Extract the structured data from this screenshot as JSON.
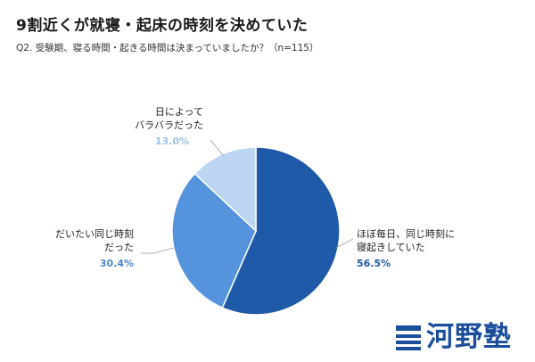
{
  "title": "9割近くが就寝・起床の時刻を決めていた",
  "subtitle": "Q2. 受験期、寝る時間・起きる時間は決まっていましたか？（n=115）",
  "logo": {
    "text": "河野塾"
  },
  "colors": {
    "dark": "#1e5aa7",
    "mid": "#5593dc",
    "light": "#bcd5f0",
    "pct_dark": "#1e5aa7",
    "pct_mid": "#4a86cf",
    "pct_light": "#9ec0e6",
    "leader": "#999999"
  },
  "chart_data": {
    "type": "pie",
    "title": "9割近くが就寝・起床の時刻を決めていた",
    "slices": [
      {
        "label_lines": [
          "ほぼ毎日、同じ時刻に",
          "寝起きしていた"
        ],
        "value": 56.5,
        "pct_text": "56.5%",
        "color": "#1e5aa7"
      },
      {
        "label_lines": [
          "だいたい同じ時刻",
          "だった"
        ],
        "value": 30.4,
        "pct_text": "30.4%",
        "color": "#5593dc"
      },
      {
        "label_lines": [
          "日によって",
          "バラバラだった"
        ],
        "value": 13.0,
        "pct_text": "13.0%",
        "color": "#bcd5f0"
      }
    ],
    "start": "12 o'clock",
    "direction": "clockwise",
    "legend": "none"
  }
}
